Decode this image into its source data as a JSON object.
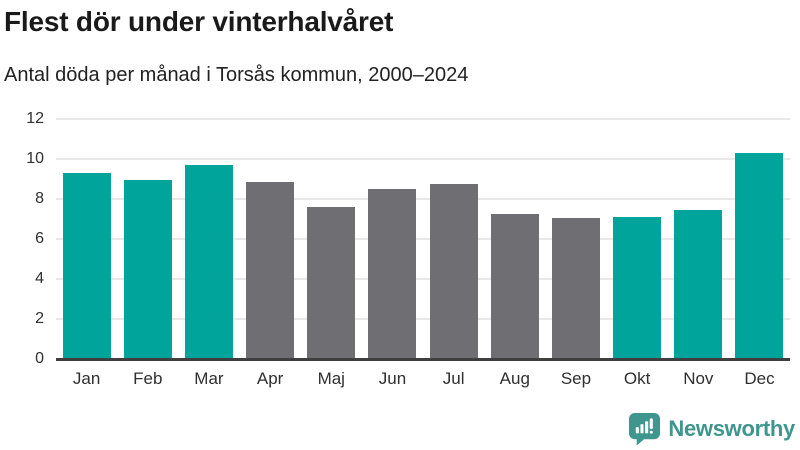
{
  "title": "Flest dör under vinterhalvåret",
  "subtitle": "Antal döda per månad i Torsås kommun, 2000–2024",
  "footer": {
    "brand": "Newsworthy"
  },
  "colors": {
    "teal": "#00a49b",
    "gray": "#6e6e73",
    "grid": "#e8e8e8",
    "axis": "#3f3f3f",
    "logo_teal": "#3e968e"
  },
  "chart_data": {
    "type": "bar",
    "title": "Flest dör under vinterhalvåret",
    "subtitle": "Antal döda per månad i Torsås kommun, 2000–2024",
    "categories": [
      "Jan",
      "Feb",
      "Mar",
      "Apr",
      "Maj",
      "Jun",
      "Jul",
      "Aug",
      "Sep",
      "Okt",
      "Nov",
      "Dec"
    ],
    "values": [
      9.3,
      8.95,
      9.7,
      8.85,
      7.6,
      8.5,
      8.75,
      7.25,
      7.05,
      7.1,
      7.45,
      10.3
    ],
    "bar_colors": [
      "#00a49b",
      "#00a49b",
      "#00a49b",
      "#6e6e73",
      "#6e6e73",
      "#6e6e73",
      "#6e6e73",
      "#6e6e73",
      "#6e6e73",
      "#00a49b",
      "#00a49b",
      "#00a49b"
    ],
    "xlabel": "",
    "ylabel": "",
    "ylim": [
      0,
      12
    ],
    "yticks": [
      0,
      2,
      4,
      6,
      8,
      10,
      12
    ],
    "grid": "horizontal",
    "legend": "none",
    "color_meaning": "teal = winter half-year months, gray = summer half-year months"
  }
}
